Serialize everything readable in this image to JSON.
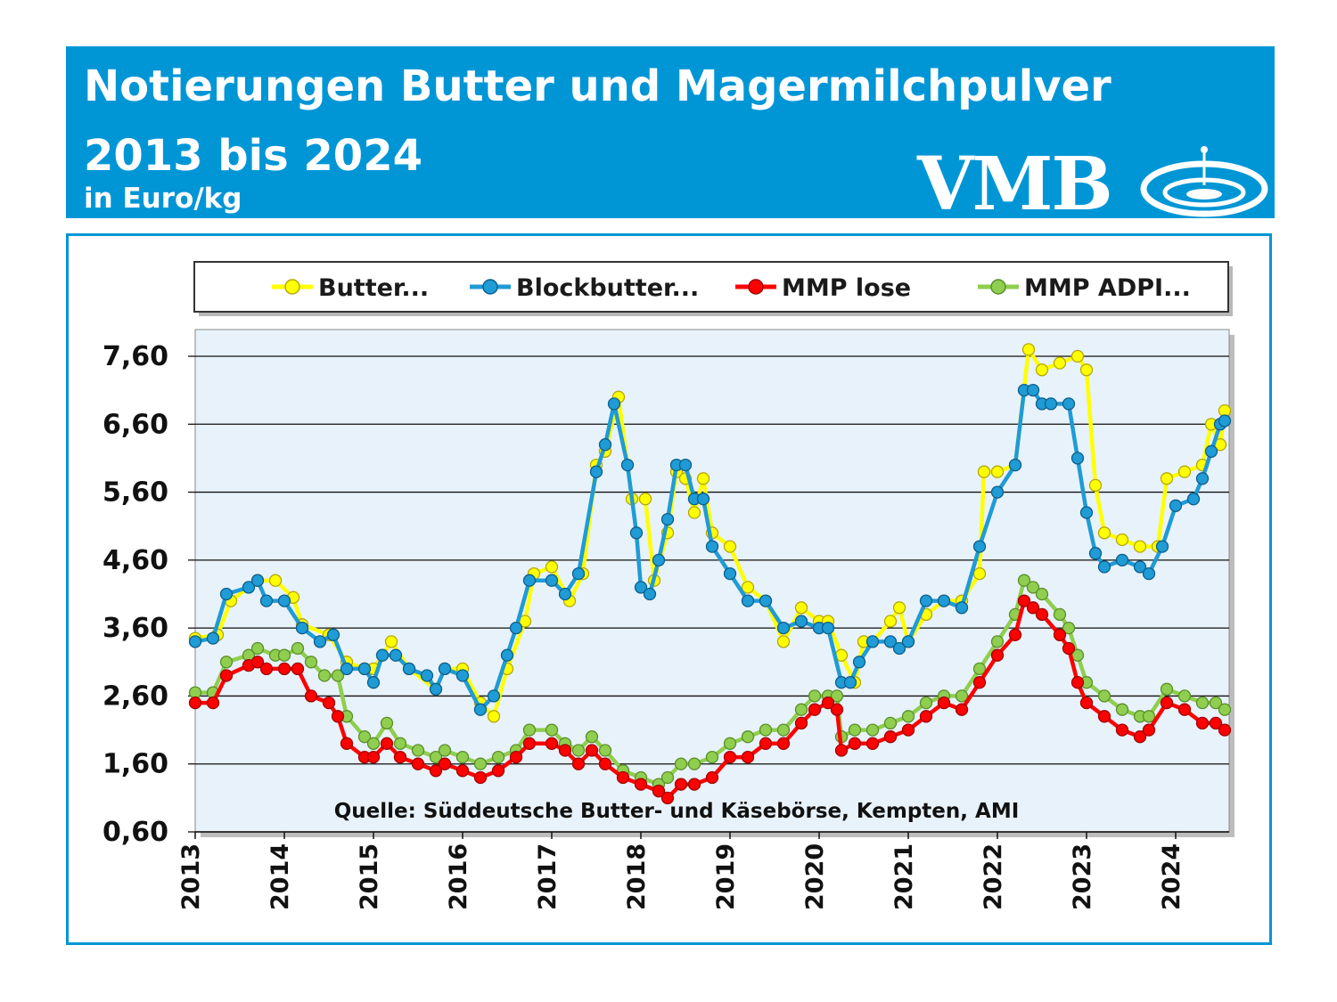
{
  "header": {
    "title_line1": "Notierungen Butter und Magermilchpulver",
    "title_line2": "2013 bis 2024",
    "unit": "in Euro/kg",
    "logo_text": "VMB"
  },
  "colors": {
    "brand_blue": "#0096d6",
    "plot_background": "#e8f2fb",
    "butter": "#ffff00",
    "blockbutter": "#1f9bd6",
    "mmp_lose": "#ff0000",
    "mmp_adpi": "#8fce4f"
  },
  "chart_data": {
    "type": "line",
    "title": "Notierungen Butter und Magermilchpulver 2013 bis 2024",
    "ylabel": "in Euro/kg",
    "source": "Quelle: Süddeutsche Butter- und Käsebörse, Kempten, AMI",
    "ylim": [
      0.6,
      7.6
    ],
    "xlim": [
      2013.0,
      2024.6
    ],
    "yticks": [
      "7,60",
      "6,60",
      "5,60",
      "4,60",
      "3,60",
      "2,60",
      "1,60",
      "0,60"
    ],
    "xticks": [
      "2013",
      "2014",
      "2015",
      "2016",
      "2017",
      "2018",
      "2019",
      "2020",
      "2021",
      "2022",
      "2023",
      "2024"
    ],
    "grid": true,
    "legend_position": "top",
    "series": [
      {
        "name": "Butter...",
        "points": [
          [
            2013.0,
            3.45
          ],
          [
            2013.25,
            3.5
          ],
          [
            2013.4,
            4.0
          ],
          [
            2013.7,
            4.3
          ],
          [
            2013.9,
            4.3
          ],
          [
            2014.1,
            4.05
          ],
          [
            2014.2,
            3.65
          ],
          [
            2014.5,
            3.5
          ],
          [
            2014.7,
            3.1
          ],
          [
            2014.9,
            3.0
          ],
          [
            2015.0,
            3.0
          ],
          [
            2015.2,
            3.4
          ],
          [
            2015.4,
            3.0
          ],
          [
            2015.7,
            2.7
          ],
          [
            2015.8,
            3.0
          ],
          [
            2016.0,
            3.0
          ],
          [
            2016.2,
            2.5
          ],
          [
            2016.35,
            2.3
          ],
          [
            2016.5,
            3.0
          ],
          [
            2016.7,
            3.7
          ],
          [
            2016.8,
            4.4
          ],
          [
            2017.0,
            4.5
          ],
          [
            2017.2,
            4.0
          ],
          [
            2017.35,
            4.4
          ],
          [
            2017.5,
            6.0
          ],
          [
            2017.6,
            6.2
          ],
          [
            2017.75,
            7.0
          ],
          [
            2017.9,
            5.5
          ],
          [
            2018.05,
            5.5
          ],
          [
            2018.15,
            4.3
          ],
          [
            2018.3,
            5.0
          ],
          [
            2018.4,
            5.9
          ],
          [
            2018.5,
            5.8
          ],
          [
            2018.6,
            5.3
          ],
          [
            2018.7,
            5.8
          ],
          [
            2018.8,
            5.0
          ],
          [
            2019.0,
            4.8
          ],
          [
            2019.2,
            4.2
          ],
          [
            2019.4,
            4.0
          ],
          [
            2019.6,
            3.4
          ],
          [
            2019.8,
            3.9
          ],
          [
            2020.0,
            3.7
          ],
          [
            2020.1,
            3.7
          ],
          [
            2020.25,
            3.2
          ],
          [
            2020.4,
            2.8
          ],
          [
            2020.5,
            3.4
          ],
          [
            2020.6,
            3.4
          ],
          [
            2020.8,
            3.7
          ],
          [
            2020.9,
            3.9
          ],
          [
            2021.0,
            3.4
          ],
          [
            2021.2,
            3.8
          ],
          [
            2021.4,
            4.0
          ],
          [
            2021.6,
            4.0
          ],
          [
            2021.8,
            4.4
          ],
          [
            2021.85,
            5.9
          ],
          [
            2022.0,
            5.9
          ],
          [
            2022.2,
            6.0
          ],
          [
            2022.35,
            7.7
          ],
          [
            2022.5,
            7.4
          ],
          [
            2022.7,
            7.5
          ],
          [
            2022.9,
            7.6
          ],
          [
            2023.0,
            7.4
          ],
          [
            2023.1,
            5.7
          ],
          [
            2023.2,
            5.0
          ],
          [
            2023.4,
            4.9
          ],
          [
            2023.6,
            4.8
          ],
          [
            2023.8,
            4.8
          ],
          [
            2023.9,
            5.8
          ],
          [
            2024.1,
            5.9
          ],
          [
            2024.3,
            6.0
          ],
          [
            2024.4,
            6.6
          ],
          [
            2024.5,
            6.3
          ],
          [
            2024.55,
            6.8
          ]
        ]
      },
      {
        "name": "Blockbutter...",
        "points": [
          [
            2013.0,
            3.4
          ],
          [
            2013.2,
            3.45
          ],
          [
            2013.35,
            4.1
          ],
          [
            2013.6,
            4.2
          ],
          [
            2013.7,
            4.3
          ],
          [
            2013.8,
            4.0
          ],
          [
            2014.0,
            4.0
          ],
          [
            2014.2,
            3.6
          ],
          [
            2014.4,
            3.4
          ],
          [
            2014.55,
            3.5
          ],
          [
            2014.7,
            3.0
          ],
          [
            2014.9,
            3.0
          ],
          [
            2015.0,
            2.8
          ],
          [
            2015.1,
            3.2
          ],
          [
            2015.25,
            3.2
          ],
          [
            2015.4,
            3.0
          ],
          [
            2015.6,
            2.9
          ],
          [
            2015.7,
            2.7
          ],
          [
            2015.8,
            3.0
          ],
          [
            2016.0,
            2.9
          ],
          [
            2016.2,
            2.4
          ],
          [
            2016.35,
            2.6
          ],
          [
            2016.5,
            3.2
          ],
          [
            2016.6,
            3.6
          ],
          [
            2016.75,
            4.3
          ],
          [
            2017.0,
            4.3
          ],
          [
            2017.15,
            4.1
          ],
          [
            2017.3,
            4.4
          ],
          [
            2017.5,
            5.9
          ],
          [
            2017.6,
            6.3
          ],
          [
            2017.7,
            6.9
          ],
          [
            2017.85,
            6.0
          ],
          [
            2017.95,
            5.0
          ],
          [
            2018.0,
            4.2
          ],
          [
            2018.1,
            4.1
          ],
          [
            2018.2,
            4.6
          ],
          [
            2018.3,
            5.2
          ],
          [
            2018.4,
            6.0
          ],
          [
            2018.5,
            6.0
          ],
          [
            2018.6,
            5.5
          ],
          [
            2018.7,
            5.5
          ],
          [
            2018.8,
            4.8
          ],
          [
            2019.0,
            4.4
          ],
          [
            2019.2,
            4.0
          ],
          [
            2019.4,
            4.0
          ],
          [
            2019.6,
            3.6
          ],
          [
            2019.8,
            3.7
          ],
          [
            2020.0,
            3.6
          ],
          [
            2020.1,
            3.6
          ],
          [
            2020.25,
            2.8
          ],
          [
            2020.35,
            2.8
          ],
          [
            2020.45,
            3.1
          ],
          [
            2020.6,
            3.4
          ],
          [
            2020.8,
            3.4
          ],
          [
            2020.9,
            3.3
          ],
          [
            2021.0,
            3.4
          ],
          [
            2021.2,
            4.0
          ],
          [
            2021.4,
            4.0
          ],
          [
            2021.6,
            3.9
          ],
          [
            2021.8,
            4.8
          ],
          [
            2022.0,
            5.6
          ],
          [
            2022.2,
            6.0
          ],
          [
            2022.3,
            7.1
          ],
          [
            2022.4,
            7.1
          ],
          [
            2022.5,
            6.9
          ],
          [
            2022.6,
            6.9
          ],
          [
            2022.8,
            6.9
          ],
          [
            2022.9,
            6.1
          ],
          [
            2023.0,
            5.3
          ],
          [
            2023.1,
            4.7
          ],
          [
            2023.2,
            4.5
          ],
          [
            2023.4,
            4.6
          ],
          [
            2023.6,
            4.5
          ],
          [
            2023.7,
            4.4
          ],
          [
            2023.85,
            4.8
          ],
          [
            2024.0,
            5.4
          ],
          [
            2024.2,
            5.5
          ],
          [
            2024.3,
            5.8
          ],
          [
            2024.4,
            6.2
          ],
          [
            2024.5,
            6.6
          ],
          [
            2024.55,
            6.65
          ]
        ]
      },
      {
        "name": "MMP lose",
        "points": [
          [
            2013.0,
            2.5
          ],
          [
            2013.2,
            2.5
          ],
          [
            2013.35,
            2.9
          ],
          [
            2013.6,
            3.05
          ],
          [
            2013.7,
            3.1
          ],
          [
            2013.8,
            3.0
          ],
          [
            2014.0,
            3.0
          ],
          [
            2014.15,
            3.0
          ],
          [
            2014.3,
            2.6
          ],
          [
            2014.5,
            2.5
          ],
          [
            2014.6,
            2.3
          ],
          [
            2014.7,
            1.9
          ],
          [
            2014.9,
            1.7
          ],
          [
            2015.0,
            1.7
          ],
          [
            2015.15,
            1.9
          ],
          [
            2015.3,
            1.7
          ],
          [
            2015.5,
            1.6
          ],
          [
            2015.7,
            1.5
          ],
          [
            2015.8,
            1.6
          ],
          [
            2016.0,
            1.5
          ],
          [
            2016.2,
            1.4
          ],
          [
            2016.4,
            1.5
          ],
          [
            2016.6,
            1.7
          ],
          [
            2016.75,
            1.9
          ],
          [
            2017.0,
            1.9
          ],
          [
            2017.15,
            1.8
          ],
          [
            2017.3,
            1.6
          ],
          [
            2017.45,
            1.8
          ],
          [
            2017.6,
            1.6
          ],
          [
            2017.8,
            1.4
          ],
          [
            2018.0,
            1.3
          ],
          [
            2018.2,
            1.2
          ],
          [
            2018.3,
            1.1
          ],
          [
            2018.45,
            1.3
          ],
          [
            2018.6,
            1.3
          ],
          [
            2018.8,
            1.4
          ],
          [
            2019.0,
            1.7
          ],
          [
            2019.2,
            1.7
          ],
          [
            2019.4,
            1.9
          ],
          [
            2019.6,
            1.9
          ],
          [
            2019.8,
            2.2
          ],
          [
            2019.95,
            2.4
          ],
          [
            2020.1,
            2.5
          ],
          [
            2020.2,
            2.4
          ],
          [
            2020.25,
            1.8
          ],
          [
            2020.4,
            1.9
          ],
          [
            2020.6,
            1.9
          ],
          [
            2020.8,
            2.0
          ],
          [
            2021.0,
            2.1
          ],
          [
            2021.2,
            2.3
          ],
          [
            2021.4,
            2.5
          ],
          [
            2021.6,
            2.4
          ],
          [
            2021.8,
            2.8
          ],
          [
            2022.0,
            3.2
          ],
          [
            2022.2,
            3.5
          ],
          [
            2022.3,
            4.0
          ],
          [
            2022.4,
            3.9
          ],
          [
            2022.5,
            3.8
          ],
          [
            2022.7,
            3.5
          ],
          [
            2022.8,
            3.3
          ],
          [
            2022.9,
            2.8
          ],
          [
            2023.0,
            2.5
          ],
          [
            2023.2,
            2.3
          ],
          [
            2023.4,
            2.1
          ],
          [
            2023.6,
            2.0
          ],
          [
            2023.7,
            2.1
          ],
          [
            2023.9,
            2.5
          ],
          [
            2024.1,
            2.4
          ],
          [
            2024.3,
            2.2
          ],
          [
            2024.45,
            2.2
          ],
          [
            2024.55,
            2.1
          ]
        ]
      },
      {
        "name": "MMP ADPI...",
        "points": [
          [
            2013.0,
            2.65
          ],
          [
            2013.2,
            2.65
          ],
          [
            2013.35,
            3.1
          ],
          [
            2013.6,
            3.2
          ],
          [
            2013.7,
            3.3
          ],
          [
            2013.9,
            3.2
          ],
          [
            2014.0,
            3.2
          ],
          [
            2014.15,
            3.3
          ],
          [
            2014.3,
            3.1
          ],
          [
            2014.45,
            2.9
          ],
          [
            2014.6,
            2.9
          ],
          [
            2014.7,
            2.3
          ],
          [
            2014.9,
            2.0
          ],
          [
            2015.0,
            1.9
          ],
          [
            2015.15,
            2.2
          ],
          [
            2015.3,
            1.9
          ],
          [
            2015.5,
            1.8
          ],
          [
            2015.7,
            1.7
          ],
          [
            2015.8,
            1.8
          ],
          [
            2016.0,
            1.7
          ],
          [
            2016.2,
            1.6
          ],
          [
            2016.4,
            1.7
          ],
          [
            2016.6,
            1.8
          ],
          [
            2016.75,
            2.1
          ],
          [
            2017.0,
            2.1
          ],
          [
            2017.15,
            1.9
          ],
          [
            2017.3,
            1.8
          ],
          [
            2017.45,
            2.0
          ],
          [
            2017.6,
            1.8
          ],
          [
            2017.8,
            1.5
          ],
          [
            2018.0,
            1.4
          ],
          [
            2018.2,
            1.3
          ],
          [
            2018.3,
            1.4
          ],
          [
            2018.45,
            1.6
          ],
          [
            2018.6,
            1.6
          ],
          [
            2018.8,
            1.7
          ],
          [
            2019.0,
            1.9
          ],
          [
            2019.2,
            2.0
          ],
          [
            2019.4,
            2.1
          ],
          [
            2019.6,
            2.1
          ],
          [
            2019.8,
            2.4
          ],
          [
            2019.95,
            2.6
          ],
          [
            2020.1,
            2.6
          ],
          [
            2020.2,
            2.6
          ],
          [
            2020.25,
            2.0
          ],
          [
            2020.4,
            2.1
          ],
          [
            2020.6,
            2.1
          ],
          [
            2020.8,
            2.2
          ],
          [
            2021.0,
            2.3
          ],
          [
            2021.2,
            2.5
          ],
          [
            2021.4,
            2.6
          ],
          [
            2021.6,
            2.6
          ],
          [
            2021.8,
            3.0
          ],
          [
            2022.0,
            3.4
          ],
          [
            2022.2,
            3.8
          ],
          [
            2022.3,
            4.3
          ],
          [
            2022.4,
            4.2
          ],
          [
            2022.5,
            4.1
          ],
          [
            2022.7,
            3.8
          ],
          [
            2022.8,
            3.6
          ],
          [
            2022.9,
            3.2
          ],
          [
            2023.0,
            2.8
          ],
          [
            2023.2,
            2.6
          ],
          [
            2023.4,
            2.4
          ],
          [
            2023.6,
            2.3
          ],
          [
            2023.7,
            2.3
          ],
          [
            2023.9,
            2.7
          ],
          [
            2024.1,
            2.6
          ],
          [
            2024.3,
            2.5
          ],
          [
            2024.45,
            2.5
          ],
          [
            2024.55,
            2.4
          ]
        ]
      }
    ]
  }
}
